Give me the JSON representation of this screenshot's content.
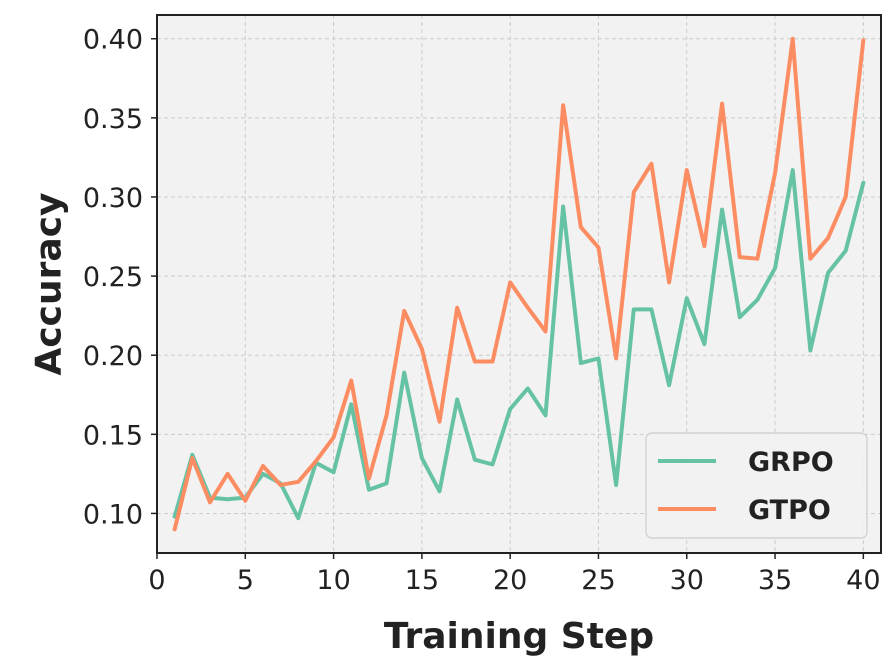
{
  "chart_data": {
    "type": "line",
    "xlabel": "Training Step",
    "ylabel": "Accuracy",
    "xlim": [
      0,
      41
    ],
    "ylim": [
      0.075,
      0.415
    ],
    "xticks": [
      0,
      5,
      10,
      15,
      20,
      25,
      30,
      35,
      40
    ],
    "yticks": [
      0.1,
      0.15,
      0.2,
      0.25,
      0.3,
      0.35,
      0.4
    ],
    "grid": true,
    "legend_position": "bottom-right",
    "x": [
      1,
      2,
      3,
      4,
      5,
      6,
      7,
      8,
      9,
      10,
      11,
      12,
      13,
      14,
      15,
      16,
      17,
      18,
      19,
      20,
      21,
      22,
      23,
      24,
      25,
      26,
      27,
      28,
      29,
      30,
      31,
      32,
      33,
      34,
      35,
      36,
      37,
      38,
      39,
      40
    ],
    "series": [
      {
        "name": "GRPO",
        "color": "#66c2a5",
        "values": [
          0.098,
          0.137,
          0.11,
          0.109,
          0.11,
          0.125,
          0.119,
          0.097,
          0.132,
          0.126,
          0.169,
          0.115,
          0.119,
          0.189,
          0.135,
          0.114,
          0.172,
          0.134,
          0.131,
          0.166,
          0.179,
          0.162,
          0.294,
          0.195,
          0.198,
          0.118,
          0.229,
          0.229,
          0.181,
          0.236,
          0.207,
          0.292,
          0.224,
          0.235,
          0.255,
          0.317,
          0.203,
          0.252,
          0.266,
          0.309
        ]
      },
      {
        "name": "GTPO",
        "color": "#fc8d62",
        "values": [
          0.09,
          0.135,
          0.107,
          0.125,
          0.108,
          0.13,
          0.118,
          0.12,
          0.133,
          0.148,
          0.184,
          0.122,
          0.162,
          0.228,
          0.204,
          0.158,
          0.23,
          0.196,
          0.196,
          0.246,
          0.23,
          0.215,
          0.358,
          0.281,
          0.268,
          0.198,
          0.303,
          0.321,
          0.246,
          0.317,
          0.269,
          0.359,
          0.262,
          0.261,
          0.315,
          0.4,
          0.261,
          0.274,
          0.3,
          0.399
        ]
      }
    ]
  }
}
